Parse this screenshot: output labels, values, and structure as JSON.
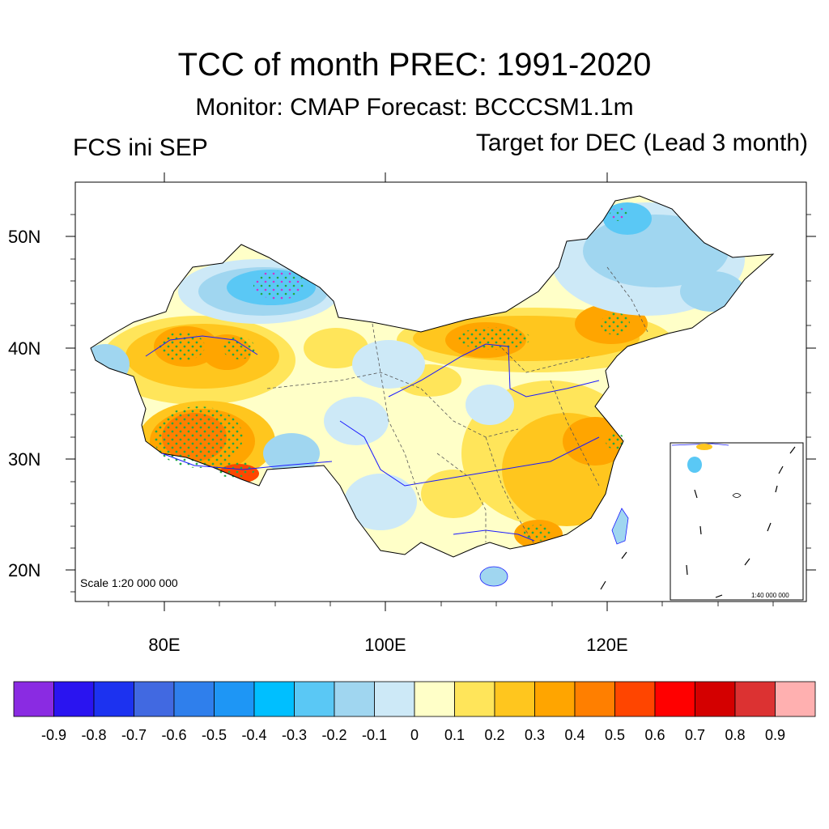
{
  "title": "TCC of month PREC: 1991-2020",
  "subtitle": "Monitor: CMAP   Forecast: BCCCSM1.1m",
  "init_label": "FCS ini SEP",
  "target_label": "Target for DEC (Lead 3 month)",
  "scale_main": "Scale 1:20 000 000",
  "scale_inset": "1:40 000 000",
  "lat_ticks": [
    "50N",
    "40N",
    "30N",
    "20N"
  ],
  "lon_ticks": [
    "80E",
    "100E",
    "120E"
  ],
  "colorbar": {
    "colors": [
      "#8a2be2",
      "#2a14f0",
      "#1c32f0",
      "#4169e1",
      "#2f7fec",
      "#1e96f5",
      "#00bfff",
      "#5ac8f5",
      "#a0d6f0",
      "#cde9f7",
      "#ffffc8",
      "#ffe55a",
      "#ffc61e",
      "#ffa500",
      "#ff7f00",
      "#ff4500",
      "#ff0000",
      "#d40000",
      "#dc3232",
      "#ffb0b0"
    ],
    "labels": [
      "-0.9",
      "-0.8",
      "-0.7",
      "-0.6",
      "-0.5",
      "-0.4",
      "-0.3",
      "-0.2",
      "-0.1",
      "0",
      "0.1",
      "0.2",
      "0.3",
      "0.4",
      "0.5",
      "0.6",
      "0.7",
      "0.8",
      "0.9"
    ]
  },
  "colors": {
    "outline": "#000000",
    "rivers": "#1a1aff",
    "stipple": "#22aa44"
  }
}
